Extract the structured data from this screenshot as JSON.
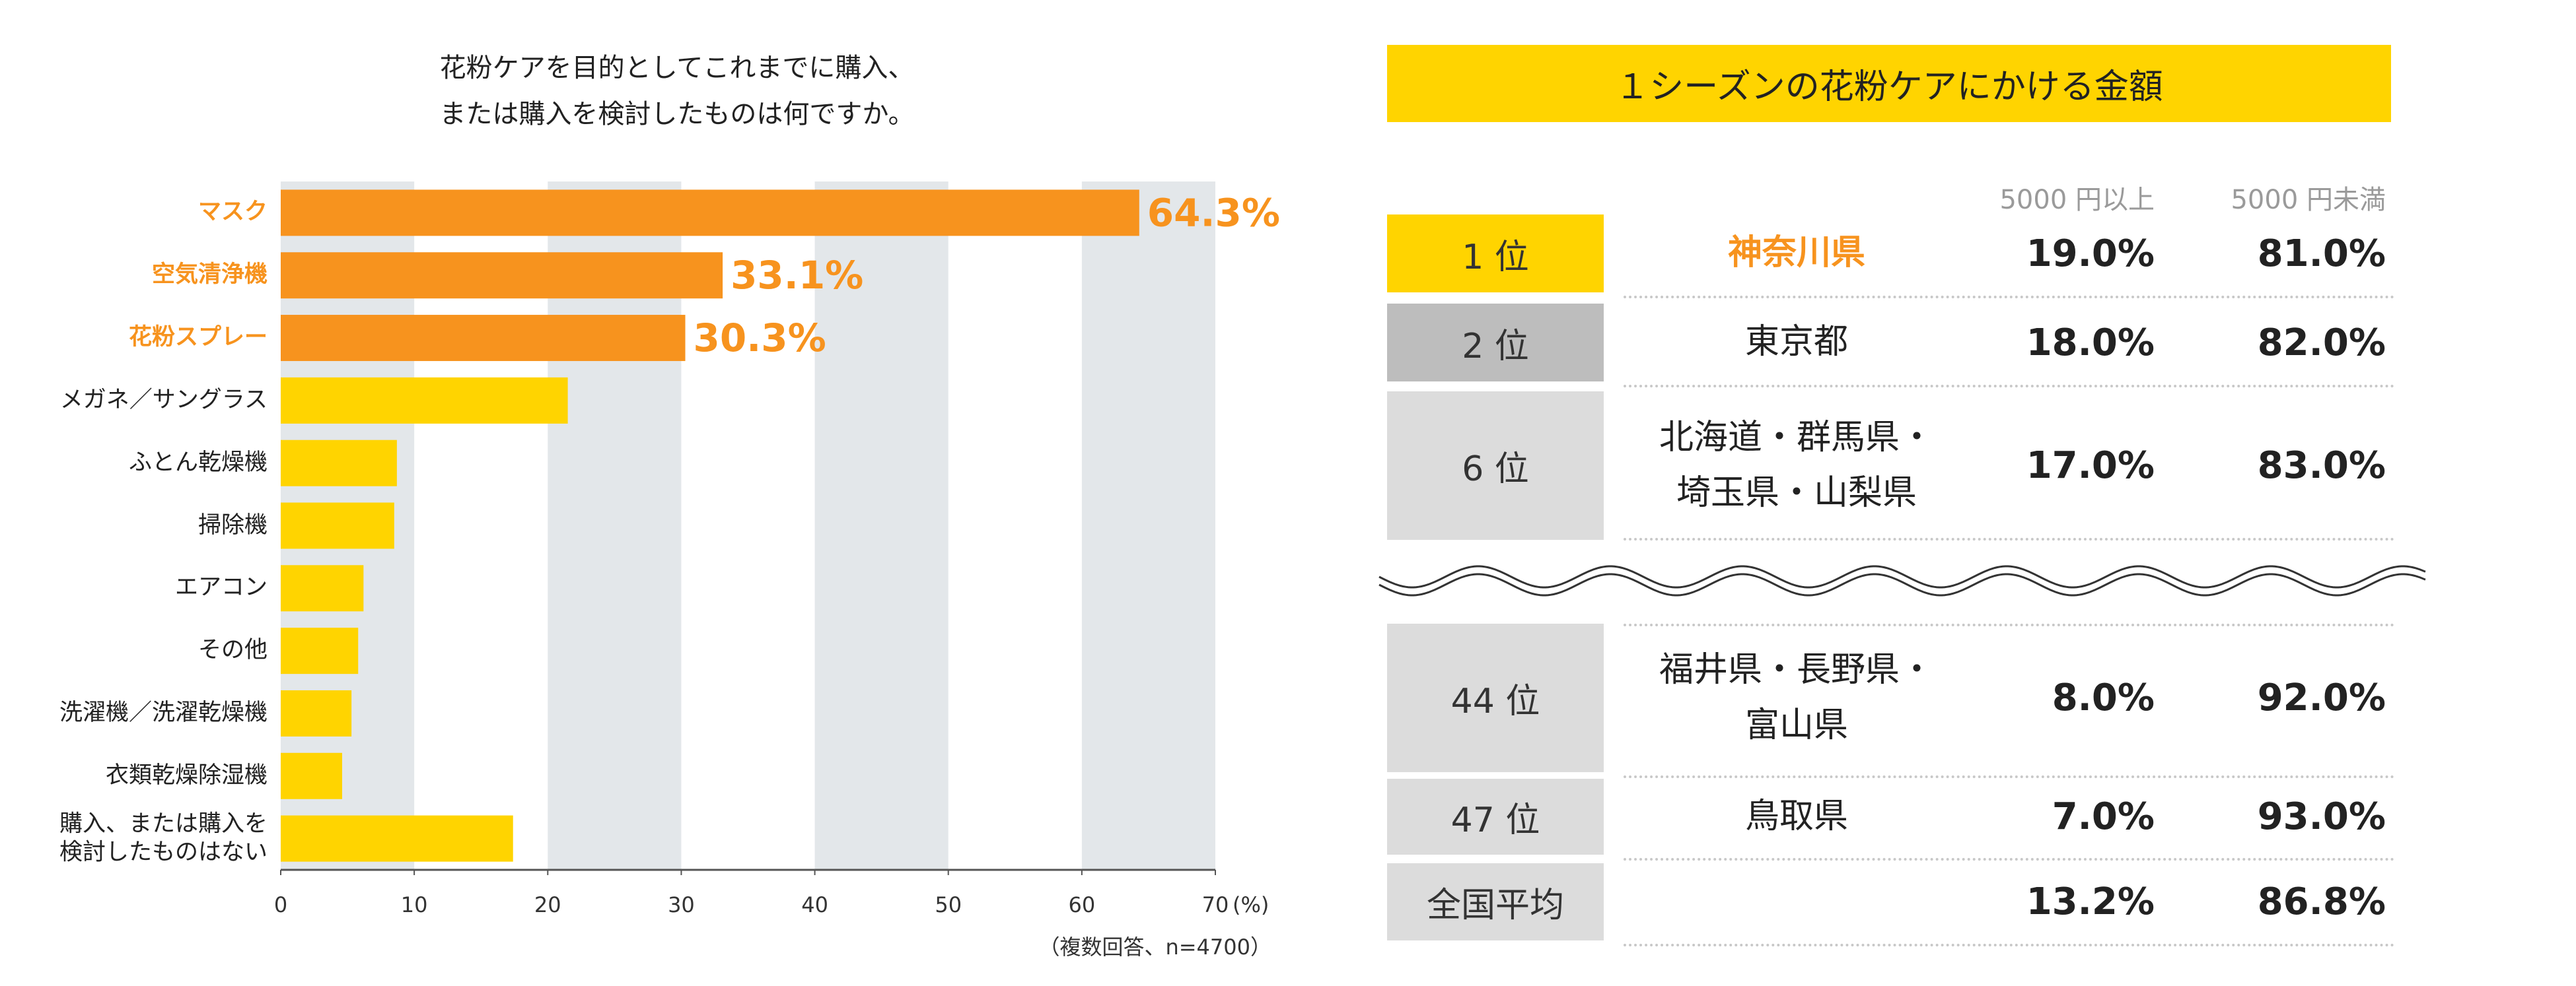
{
  "chart_data": {
    "type": "bar",
    "orientation": "horizontal",
    "title": "花粉ケアを目的としてこれまでに購入、\nまたは購入を検討したものは何ですか。",
    "categories": [
      "マスク",
      "空気清浄機",
      "花粉スプレー",
      "メガネ／サングラス",
      "ふとん乾燥機",
      "掃除機",
      "エアコン",
      "その他",
      "洗濯機／洗濯乾燥機",
      "衣類乾燥除湿機",
      "購入、または購入を\n検討したものはない"
    ],
    "values": [
      64.3,
      33.1,
      30.3,
      21.5,
      8.7,
      8.5,
      6.2,
      5.8,
      5.3,
      4.6,
      17.4
    ],
    "value_labels": [
      "64.3%",
      "33.1%",
      "30.3%",
      null,
      null,
      null,
      null,
      null,
      null,
      null,
      null
    ],
    "colors": [
      "#f7931e",
      "#f7931e",
      "#f7931e",
      "#ffd400",
      "#ffd400",
      "#ffd400",
      "#ffd400",
      "#ffd400",
      "#ffd400",
      "#ffd400",
      "#ffd400"
    ],
    "label_colors": [
      "#f7931e",
      "#f7931e",
      "#f7931e",
      "#222222",
      "#222222",
      "#222222",
      "#222222",
      "#222222",
      "#222222",
      "#222222",
      "#222222"
    ],
    "xlim": [
      0,
      70
    ],
    "xticks": [
      0,
      10,
      20,
      30,
      40,
      50,
      60,
      70
    ],
    "xlabel": "(%)",
    "grid": "bands",
    "grid_color": "#e3e7ea",
    "note": "（複数回答、n=4700）"
  },
  "table": {
    "title": "１シーズンの花粉ケアにかける金額",
    "columns": [
      "5000 円以上",
      "5000 円未満"
    ],
    "rows": [
      {
        "rank": "1 位",
        "name": "神奈川県",
        "over": "19.0%",
        "under": "81.0%"
      },
      {
        "rank": "2 位",
        "name": "東京都",
        "over": "18.0%",
        "under": "82.0%"
      },
      {
        "rank": "6 位",
        "name": "北海道・群馬県・\n埼玉県・山梨県",
        "over": "17.0%",
        "under": "83.0%"
      },
      {
        "rank": "44 位",
        "name": "福井県・長野県・\n富山県",
        "over": "8.0%",
        "under": "92.0%"
      },
      {
        "rank": "47 位",
        "name": "鳥取県",
        "over": "7.0%",
        "under": "93.0%"
      },
      {
        "rank": "全国平均",
        "over": "13.2%",
        "under": "86.8%"
      }
    ]
  }
}
